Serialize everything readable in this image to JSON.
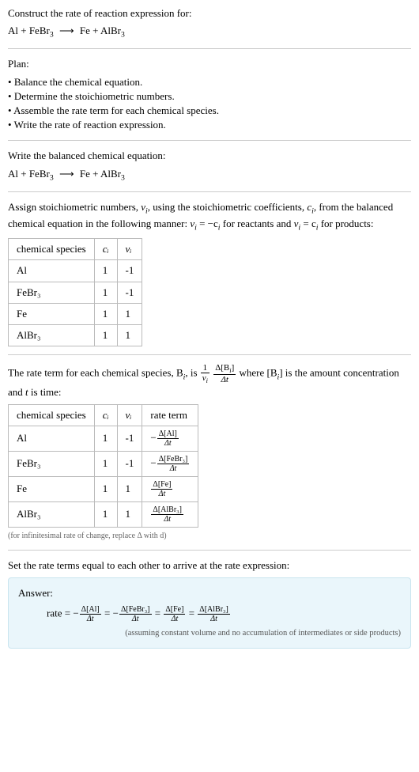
{
  "prompt": {
    "title": "Construct the rate of reaction expression for:",
    "equation_lhs": "Al + FeBr",
    "equation_sub1": "3",
    "equation_arrow": "⟶",
    "equation_rhs1": "Fe + AlBr",
    "equation_sub2": "3"
  },
  "plan": {
    "title": "Plan:",
    "items": [
      "Balance the chemical equation.",
      "Determine the stoichiometric numbers.",
      "Assemble the rate term for each chemical species.",
      "Write the rate of reaction expression."
    ]
  },
  "step1": {
    "title": "Write the balanced chemical equation:",
    "equation_lhs": "Al + FeBr",
    "equation_sub1": "3",
    "equation_arrow": "⟶",
    "equation_rhs1": "Fe + AlBr",
    "equation_sub2": "3"
  },
  "step2": {
    "text_a": "Assign stoichiometric numbers, ",
    "nu_i": "ν",
    "sub_i": "i",
    "text_b": ", using the stoichiometric coefficients, ",
    "c_i": "c",
    "text_c": ", from the balanced chemical equation in the following manner: ",
    "rel1_a": "ν",
    "rel1_b": " = −c",
    "text_d": " for reactants and ",
    "rel2_a": "ν",
    "rel2_b": " = c",
    "text_e": " for products:",
    "table": {
      "headers": [
        "chemical species",
        "cᵢ",
        "νᵢ"
      ],
      "rows": [
        [
          "Al",
          "1",
          "-1"
        ],
        [
          "FeBr₃",
          "1",
          "-1"
        ],
        [
          "Fe",
          "1",
          "1"
        ],
        [
          "AlBr₃",
          "1",
          "1"
        ]
      ]
    }
  },
  "step3": {
    "text_a": "The rate term for each chemical species, B",
    "text_b": ", is ",
    "frac1_num": "1",
    "frac1_den_a": "ν",
    "frac2_num": "Δ[B",
    "frac2_num_b": "]",
    "frac2_den": "Δt",
    "text_c": " where [B",
    "text_d": "] is the amount concentration and ",
    "t_var": "t",
    "text_e": " is time:",
    "table": {
      "headers": [
        "chemical species",
        "cᵢ",
        "νᵢ",
        "rate term"
      ],
      "rows": [
        {
          "sp": "Al",
          "c": "1",
          "nu": "-1",
          "sign": "−",
          "num": "Δ[Al]",
          "den": "Δt"
        },
        {
          "sp": "FeBr₃",
          "c": "1",
          "nu": "-1",
          "sign": "−",
          "num": "Δ[FeBr₃]",
          "den": "Δt"
        },
        {
          "sp": "Fe",
          "c": "1",
          "nu": "1",
          "sign": "",
          "num": "Δ[Fe]",
          "den": "Δt"
        },
        {
          "sp": "AlBr₃",
          "c": "1",
          "nu": "1",
          "sign": "",
          "num": "Δ[AlBr₃]",
          "den": "Δt"
        }
      ]
    },
    "note": "(for infinitesimal rate of change, replace Δ with d)"
  },
  "step4": {
    "title": "Set the rate terms equal to each other to arrive at the rate expression:"
  },
  "answer": {
    "label": "Answer:",
    "rate_label": "rate = ",
    "terms": [
      {
        "sign": "−",
        "num": "Δ[Al]",
        "den": "Δt"
      },
      {
        "sign": "−",
        "num": "Δ[FeBr₃]",
        "den": "Δt"
      },
      {
        "sign": "",
        "num": "Δ[Fe]",
        "den": "Δt"
      },
      {
        "sign": "",
        "num": "Δ[AlBr₃]",
        "den": "Δt"
      }
    ],
    "eq": " = ",
    "assume": "(assuming constant volume and no accumulation of intermediates or side products)"
  },
  "colors": {
    "divider": "#cccccc",
    "table_border": "#bbbbbb",
    "answer_bg": "#eaf6fb",
    "answer_border": "#c8e4ef",
    "note_color": "#666666"
  }
}
